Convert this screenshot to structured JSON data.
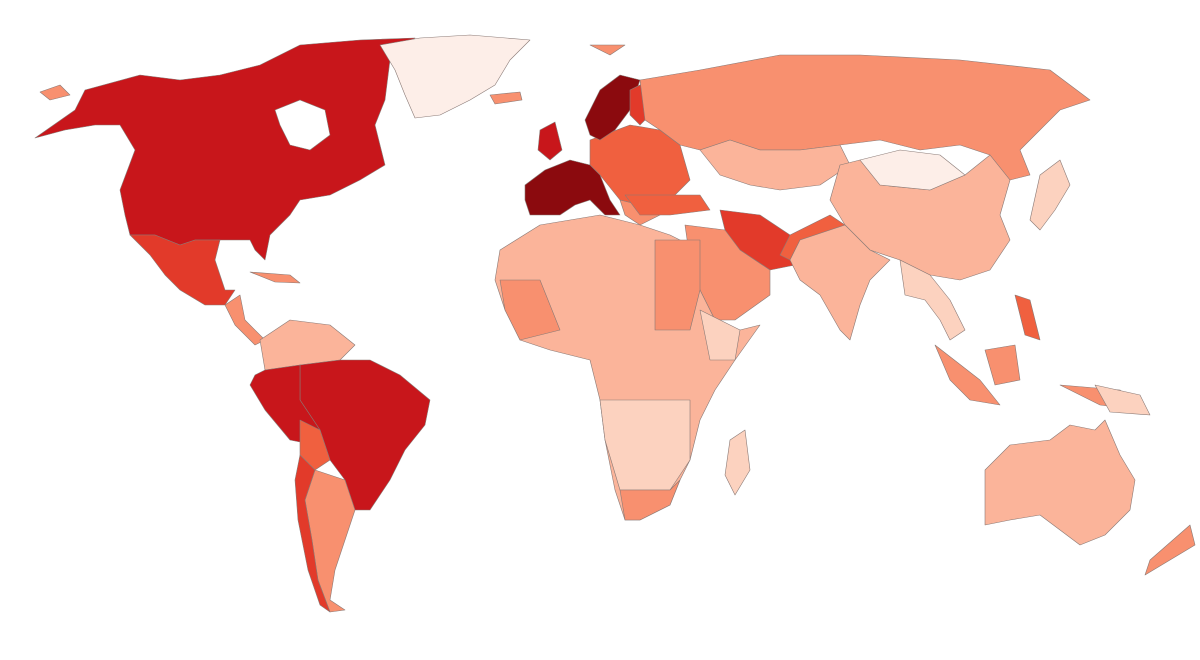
{
  "map": {
    "palette": [
      "#fdeee8",
      "#fcd2bf",
      "#fbb49a",
      "#f8906f",
      "#f0603f",
      "#e23a2a",
      "#c8161b",
      "#8b0a0e"
    ]
  }
}
